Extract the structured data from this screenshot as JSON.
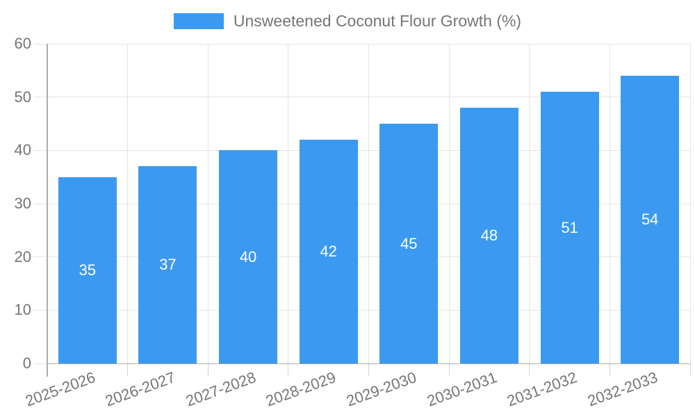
{
  "legend": {
    "label": "Unsweetened Coconut Flour Growth (%)"
  },
  "colors": {
    "bar": "#3B9AF0",
    "grid": "#E4E4E4",
    "tick": "#D4D4D4",
    "axis": "#ACACAC",
    "tick_label": "#757575",
    "value_label": "#FFFFFF",
    "background": "#FFFFFF"
  },
  "chart_data": {
    "type": "bar",
    "title": "",
    "series_name": "Unsweetened Coconut Flour Growth (%)",
    "categories": [
      "2025-2026",
      "2026-2027",
      "2027-2028",
      "2028-2029",
      "2029-2030",
      "2030-2031",
      "2031-2032",
      "2032-2033"
    ],
    "values": [
      35,
      37,
      40,
      42,
      45,
      48,
      51,
      54
    ],
    "xlabel": "",
    "ylabel": "",
    "ylim": [
      0,
      60
    ],
    "yticks": [
      0,
      10,
      20,
      30,
      40,
      50,
      60
    ],
    "grid": true,
    "legend_position": "top",
    "bar_value_labels": "inside-center",
    "x_label_rotation_deg": -20
  }
}
